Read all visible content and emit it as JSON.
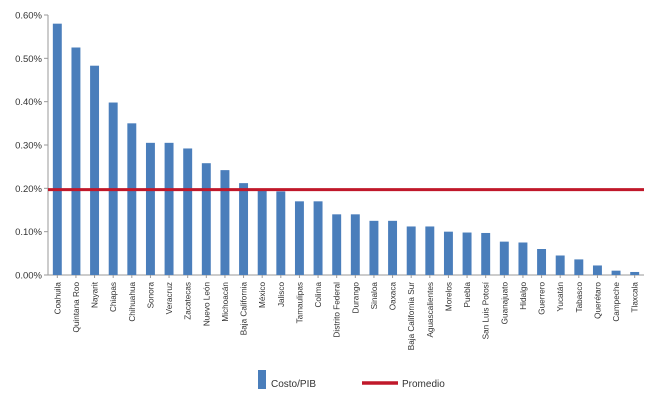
{
  "chart_data": {
    "type": "bar",
    "title": "",
    "xlabel": "",
    "ylabel": "",
    "ylim": [
      0,
      0.6
    ],
    "y_ticks": [
      "0.00%",
      "0.10%",
      "0.20%",
      "0.30%",
      "0.40%",
      "0.50%",
      "0.60%"
    ],
    "y_tick_values": [
      0,
      0.1,
      0.2,
      0.3,
      0.4,
      0.5,
      0.6
    ],
    "grid": false,
    "legend_position": "bottom",
    "categories": [
      "Coahuila",
      "Quintana Roo",
      "Nayarit",
      "Chiapas",
      "Chihuahua",
      "Sonora",
      "Veracruz",
      "Zacatecas",
      "Nuevo León",
      "Michoacán",
      "Baja California",
      "México",
      "Jalisco",
      "Tamaulipas",
      "Colima",
      "Distrito Federal",
      "Durango",
      "Sinaloa",
      "Oaxaca",
      "Baja California Sur",
      "Aguascalientes",
      "Morelos",
      "Puebla",
      "San Luis Potosí",
      "Guanajuato",
      "Hidalgo",
      "Guerrero",
      "Yucatán",
      "Tabasco",
      "Querétaro",
      "Campeche",
      "Tlaxcala"
    ],
    "series": [
      {
        "name": "Costo/PIB",
        "type": "bar",
        "color": "#4a7ebb",
        "values": [
          0.58,
          0.525,
          0.483,
          0.398,
          0.35,
          0.305,
          0.305,
          0.292,
          0.258,
          0.242,
          0.212,
          0.195,
          0.193,
          0.17,
          0.17,
          0.14,
          0.14,
          0.125,
          0.125,
          0.112,
          0.112,
          0.1,
          0.098,
          0.097,
          0.077,
          0.075,
          0.06,
          0.045,
          0.036,
          0.022,
          0.01,
          0.007
        ]
      },
      {
        "name": "Promedio",
        "type": "line",
        "color": "#c0182a",
        "value": 0.197
      }
    ]
  }
}
